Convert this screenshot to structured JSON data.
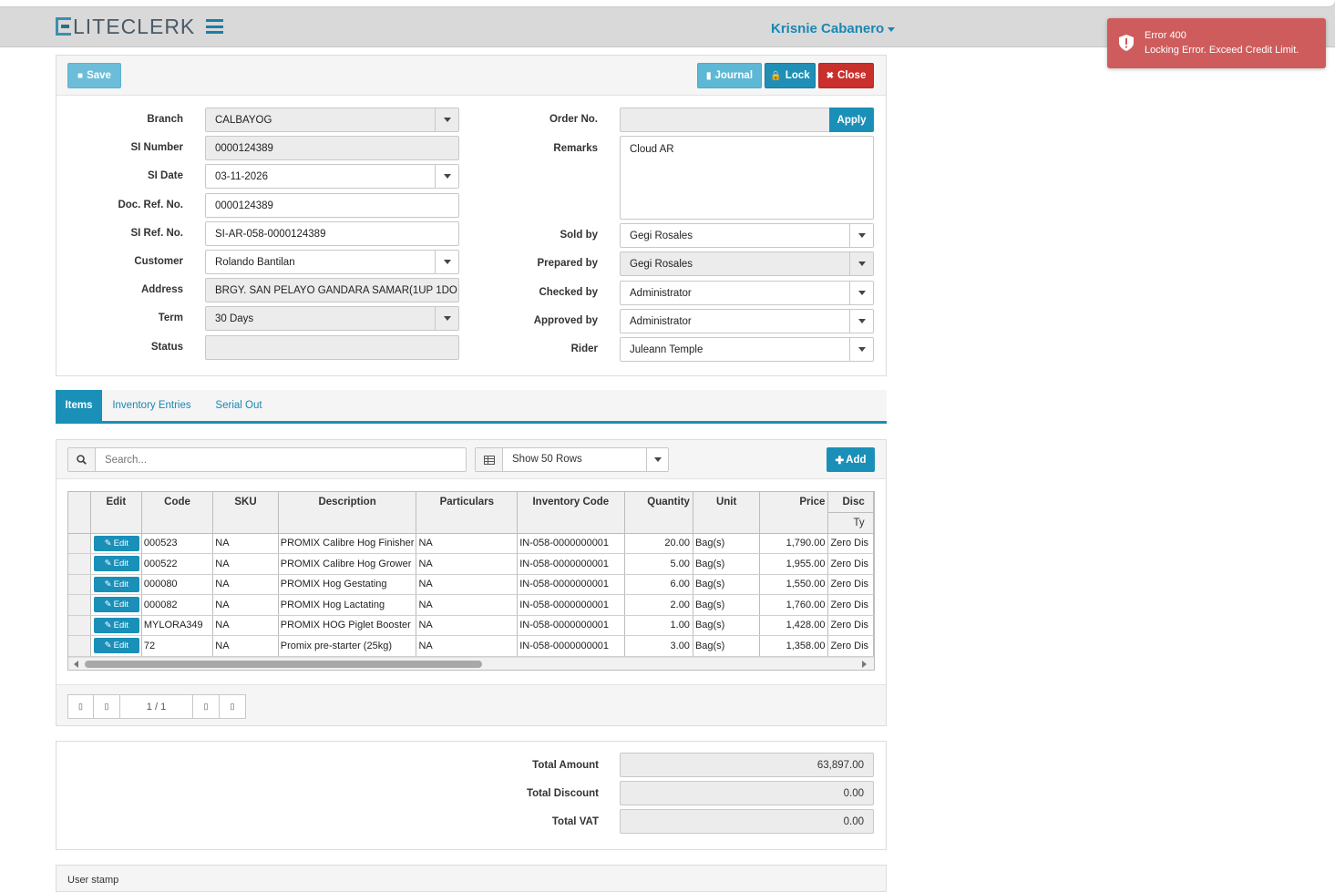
{
  "app": {
    "logo_text": "LITECLERK",
    "user_name": "Krisnie Cabanero"
  },
  "toast": {
    "title": "Error 400",
    "message": "Locking Error. Exceed Credit Limit."
  },
  "toolbar": {
    "save": "Save",
    "journal": "Journal",
    "lock": "Lock",
    "close": "Close"
  },
  "form_left": {
    "branch": {
      "label": "Branch",
      "value": "CALBAYOG"
    },
    "si_number": {
      "label": "SI Number",
      "value": "0000124389"
    },
    "si_date": {
      "label": "SI Date",
      "value": "03-11-2026"
    },
    "doc_ref": {
      "label": "Doc. Ref. No.",
      "value": "0000124389"
    },
    "si_ref": {
      "label": "SI Ref. No.",
      "value": "SI-AR-058-0000124389"
    },
    "customer": {
      "label": "Customer",
      "value": "Rolando Bantilan"
    },
    "address": {
      "label": "Address",
      "value": "BRGY. SAN PELAYO GANDARA SAMAR(1UP 1DO"
    },
    "term": {
      "label": "Term",
      "value": "30 Days"
    },
    "status": {
      "label": "Status",
      "value": ""
    }
  },
  "form_right": {
    "order_no": {
      "label": "Order No.",
      "value": "",
      "apply": "Apply"
    },
    "remarks": {
      "label": "Remarks",
      "value": "Cloud AR"
    },
    "sold_by": {
      "label": "Sold by",
      "value": "Gegi Rosales"
    },
    "prepared_by": {
      "label": "Prepared by",
      "value": "Gegi Rosales"
    },
    "checked_by": {
      "label": "Checked by",
      "value": "Administrator"
    },
    "approved_by": {
      "label": "Approved by",
      "value": "Administrator"
    },
    "rider": {
      "label": "Rider",
      "value": "Juleann Temple"
    }
  },
  "tabs": [
    {
      "label": "Items",
      "active": true
    },
    {
      "label": "Inventory Entries",
      "active": false
    },
    {
      "label": "Serial Out",
      "active": false
    }
  ],
  "items_toolbar": {
    "search_placeholder": "Search...",
    "rows_select": "Show 50 Rows",
    "add": "Add"
  },
  "grid": {
    "headers": [
      "Edit",
      "Code",
      "SKU",
      "Description",
      "Particulars",
      "Inventory Code",
      "Quantity",
      "Unit",
      "Price",
      "Disc"
    ],
    "sub_header": "Ty",
    "edit_label": "Edit",
    "rows": [
      {
        "code": "000523",
        "sku": "NA",
        "description": "PROMIX Calibre Hog Finisher",
        "particulars": "NA",
        "inventory_code": "IN-058-0000000001",
        "quantity": "20.00",
        "unit": "Bag(s)",
        "price": "1,790.00",
        "discount": "Zero Dis"
      },
      {
        "code": "000522",
        "sku": "NA",
        "description": "PROMIX Calibre Hog Grower",
        "particulars": "NA",
        "inventory_code": "IN-058-0000000001",
        "quantity": "5.00",
        "unit": "Bag(s)",
        "price": "1,955.00",
        "discount": "Zero Dis"
      },
      {
        "code": "000080",
        "sku": "NA",
        "description": "PROMIX Hog Gestating",
        "particulars": "NA",
        "inventory_code": "IN-058-0000000001",
        "quantity": "6.00",
        "unit": "Bag(s)",
        "price": "1,550.00",
        "discount": "Zero Dis"
      },
      {
        "code": "000082",
        "sku": "NA",
        "description": "PROMIX Hog Lactating",
        "particulars": "NA",
        "inventory_code": "IN-058-0000000001",
        "quantity": "2.00",
        "unit": "Bag(s)",
        "price": "1,760.00",
        "discount": "Zero Dis"
      },
      {
        "code": "MYLORA349",
        "sku": "NA",
        "description": "PROMIX HOG Piglet Booster",
        "particulars": "NA",
        "inventory_code": "IN-058-0000000001",
        "quantity": "1.00",
        "unit": "Bag(s)",
        "price": "1,428.00",
        "discount": "Zero Dis"
      },
      {
        "code": "72",
        "sku": "NA",
        "description": "Promix pre-starter (25kg)",
        "particulars": "NA",
        "inventory_code": "IN-058-0000000001",
        "quantity": "3.00",
        "unit": "Bag(s)",
        "price": "1,358.00",
        "discount": "Zero Dis"
      }
    ]
  },
  "pager": {
    "page": "1 / 1"
  },
  "totals": {
    "total_amount": {
      "label": "Total Amount",
      "value": "63,897.00"
    },
    "total_discount": {
      "label": "Total Discount",
      "value": "0.00"
    },
    "total_vat": {
      "label": "Total VAT",
      "value": "0.00"
    }
  },
  "user_stamp": {
    "title": "User stamp"
  },
  "colors": {
    "primary": "#1a8fb8",
    "danger": "#c9302c",
    "toast": "#cf5c5c",
    "brand_text": "#1a87b2"
  }
}
